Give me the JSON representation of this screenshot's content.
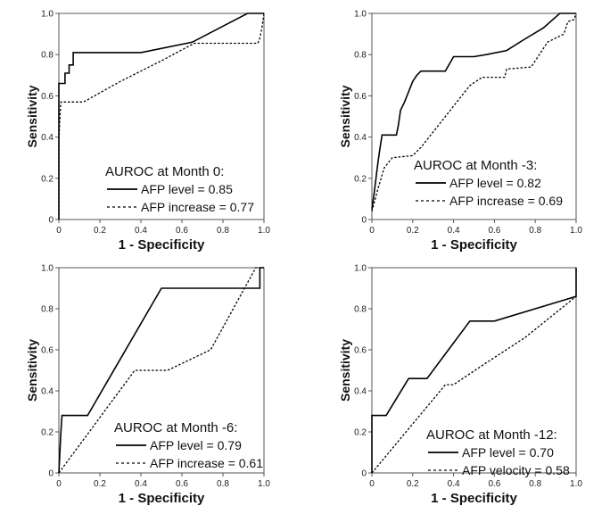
{
  "chart_data": [
    {
      "type": "line",
      "title": "AUROC at Month 0:",
      "xlabel": "1 - Specificity",
      "ylabel": "Sensitivity",
      "xlim": [
        0,
        1
      ],
      "ylim": [
        0,
        1
      ],
      "x_ticks": [
        "0",
        "0.2",
        "0.4",
        "0.6",
        "0.8",
        "1.0"
      ],
      "y_ticks": [
        "0",
        "0.2",
        "0.4",
        "0.6",
        "0.8",
        "1.0"
      ],
      "series": [
        {
          "name": "AFP level",
          "legend": "AFP level = 0.85",
          "style": "solid",
          "points": [
            [
              0,
              0
            ],
            [
              0,
              0.66
            ],
            [
              0.03,
              0.66
            ],
            [
              0.03,
              0.71
            ],
            [
              0.05,
              0.71
            ],
            [
              0.05,
              0.75
            ],
            [
              0.07,
              0.75
            ],
            [
              0.07,
              0.81
            ],
            [
              0.4,
              0.81
            ],
            [
              0.65,
              0.86
            ],
            [
              0.92,
              1.0
            ],
            [
              1.0,
              1.0
            ]
          ]
        },
        {
          "name": "AFP increase",
          "legend": "AFP increase = 0.77",
          "style": "dashed",
          "points": [
            [
              0,
              0
            ],
            [
              0,
              0.38
            ],
            [
              0.005,
              0.5
            ],
            [
              0.01,
              0.57
            ],
            [
              0.12,
              0.57
            ],
            [
              0.3,
              0.67
            ],
            [
              0.5,
              0.77
            ],
            [
              0.66,
              0.855
            ],
            [
              0.97,
              0.855
            ],
            [
              0.98,
              0.88
            ],
            [
              0.99,
              0.93
            ],
            [
              1.0,
              1.0
            ]
          ]
        }
      ]
    },
    {
      "type": "line",
      "title": "AUROC at Month -3:",
      "xlabel": "1 - Specificity",
      "ylabel": "Sensitivity",
      "xlim": [
        0,
        1
      ],
      "ylim": [
        0,
        1
      ],
      "x_ticks": [
        "0",
        "0.2",
        "0.4",
        "0.6",
        "0.8",
        "1.0"
      ],
      "y_ticks": [
        "0",
        "0.2",
        "0.4",
        "0.6",
        "0.8",
        "1.0"
      ],
      "series": [
        {
          "name": "AFP level",
          "legend": "AFP level = 0.82",
          "style": "solid",
          "points": [
            [
              0,
              0.05
            ],
            [
              0.01,
              0.12
            ],
            [
              0.02,
              0.2
            ],
            [
              0.03,
              0.28
            ],
            [
              0.04,
              0.35
            ],
            [
              0.05,
              0.41
            ],
            [
              0.12,
              0.41
            ],
            [
              0.13,
              0.46
            ],
            [
              0.14,
              0.53
            ],
            [
              0.16,
              0.57
            ],
            [
              0.18,
              0.62
            ],
            [
              0.2,
              0.67
            ],
            [
              0.22,
              0.7
            ],
            [
              0.24,
              0.72
            ],
            [
              0.36,
              0.72
            ],
            [
              0.4,
              0.79
            ],
            [
              0.5,
              0.79
            ],
            [
              0.56,
              0.8
            ],
            [
              0.66,
              0.82
            ],
            [
              0.74,
              0.87
            ],
            [
              0.84,
              0.93
            ],
            [
              0.92,
              1.0
            ],
            [
              1.0,
              1.0
            ]
          ]
        },
        {
          "name": "AFP increase",
          "legend": "AFP increase = 0.69",
          "style": "dashed",
          "points": [
            [
              0,
              0.04
            ],
            [
              0.03,
              0.15
            ],
            [
              0.06,
              0.25
            ],
            [
              0.1,
              0.3
            ],
            [
              0.2,
              0.31
            ],
            [
              0.24,
              0.35
            ],
            [
              0.32,
              0.45
            ],
            [
              0.4,
              0.55
            ],
            [
              0.48,
              0.65
            ],
            [
              0.54,
              0.69
            ],
            [
              0.65,
              0.69
            ],
            [
              0.66,
              0.73
            ],
            [
              0.78,
              0.74
            ],
            [
              0.82,
              0.8
            ],
            [
              0.86,
              0.86
            ],
            [
              0.9,
              0.88
            ],
            [
              0.94,
              0.9
            ],
            [
              0.96,
              0.96
            ],
            [
              0.99,
              0.97
            ],
            [
              1.0,
              1.0
            ]
          ]
        }
      ]
    },
    {
      "type": "line",
      "title": "AUROC at Month -6:",
      "xlabel": "1 - Specificity",
      "ylabel": "Sensitivity",
      "xlim": [
        0,
        1
      ],
      "ylim": [
        0,
        1
      ],
      "x_ticks": [
        "0",
        "0.2",
        "0.4",
        "0.6",
        "0.8",
        "1.0"
      ],
      "y_ticks": [
        "0",
        "0.2",
        "0.4",
        "0.6",
        "0.8",
        "1.0"
      ],
      "series": [
        {
          "name": "AFP level",
          "legend": "AFP level = 0.79",
          "style": "solid",
          "points": [
            [
              0,
              0
            ],
            [
              0.01,
              0.2
            ],
            [
              0.015,
              0.28
            ],
            [
              0.14,
              0.28
            ],
            [
              0.5,
              0.9
            ],
            [
              0.98,
              0.9
            ],
            [
              0.98,
              1.0
            ],
            [
              1.0,
              1.0
            ]
          ]
        },
        {
          "name": "AFP increase",
          "legend": "AFP increase = 0.61",
          "style": "dashed",
          "points": [
            [
              0,
              0
            ],
            [
              0.37,
              0.5
            ],
            [
              0.53,
              0.5
            ],
            [
              0.74,
              0.6
            ],
            [
              0.96,
              1.0
            ],
            [
              1.0,
              1.0
            ]
          ]
        }
      ]
    },
    {
      "type": "line",
      "title": "AUROC at Month -12:",
      "xlabel": "1 - Specificity",
      "ylabel": "Sensitivity",
      "xlim": [
        0,
        1
      ],
      "ylim": [
        0,
        1
      ],
      "x_ticks": [
        "0",
        "0.2",
        "0.4",
        "0.6",
        "0.8",
        "1.0"
      ],
      "y_ticks": [
        "0",
        "0.2",
        "0.4",
        "0.6",
        "0.8",
        "1.0"
      ],
      "series": [
        {
          "name": "AFP level",
          "legend": "AFP level = 0.70",
          "style": "solid",
          "points": [
            [
              0,
              0
            ],
            [
              0,
              0.28
            ],
            [
              0.07,
              0.28
            ],
            [
              0.18,
              0.46
            ],
            [
              0.27,
              0.46
            ],
            [
              0.48,
              0.74
            ],
            [
              0.6,
              0.74
            ],
            [
              1.0,
              0.86
            ],
            [
              1.0,
              1.0
            ]
          ]
        },
        {
          "name": "AFP velocity",
          "legend": "AFP velocity = 0.58",
          "style": "dashed",
          "points": [
            [
              0,
              0
            ],
            [
              0.36,
              0.43
            ],
            [
              0.4,
              0.43
            ],
            [
              0.55,
              0.53
            ],
            [
              0.75,
              0.66
            ],
            [
              1.0,
              0.86
            ]
          ]
        }
      ]
    }
  ]
}
